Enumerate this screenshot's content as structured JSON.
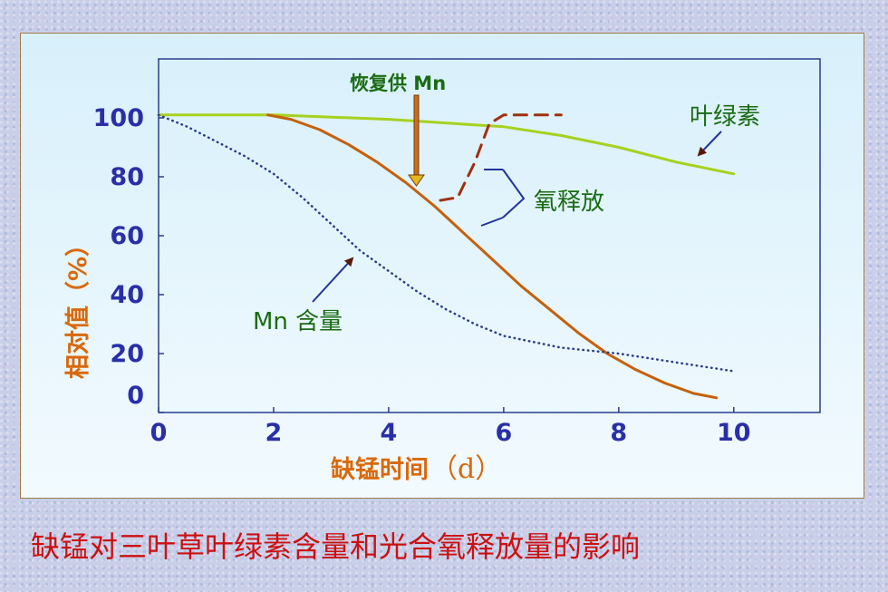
{
  "caption": "缺锰对三叶草叶绿素含量和光合氧释放量的影响",
  "chart_data": {
    "type": "line",
    "xlabel": "缺锰时间",
    "xlabel_unit": "（d）",
    "ylabel": "相对值（%）",
    "xlim": [
      0,
      11.5
    ],
    "ylim": [
      0,
      120
    ],
    "xticks": [
      "0",
      "2",
      "4",
      "6",
      "8",
      "10"
    ],
    "yticks": [
      "0",
      "20",
      "40",
      "60",
      "80",
      "100"
    ],
    "series": [
      {
        "name": "叶绿素",
        "color": "#a6d11e",
        "style": "solid",
        "x": [
          0,
          2,
          4,
          6,
          7,
          8,
          9,
          10
        ],
        "y": [
          101,
          101,
          99.5,
          97,
          94,
          90,
          85,
          81
        ]
      },
      {
        "name": "氧释放",
        "color": "#c5600c",
        "style": "solid",
        "x": [
          1.9,
          2.3,
          2.8,
          3.3,
          3.8,
          4.3,
          4.8,
          5.3,
          5.8,
          6.3,
          6.8,
          7.3,
          7.8,
          8.3,
          8.8,
          9.3,
          9.7
        ],
        "y": [
          101,
          99.5,
          96,
          91,
          85,
          78,
          70,
          61,
          52,
          43,
          35,
          27,
          20,
          14.5,
          10,
          6.5,
          5
        ]
      },
      {
        "name": "氧释放（恢复供Mn）",
        "color": "#a03010",
        "style": "dashed",
        "x": [
          4.9,
          5.2,
          5.5,
          5.75,
          6.0,
          7.0
        ],
        "y": [
          72,
          73,
          85,
          98,
          101,
          101
        ]
      },
      {
        "name": "Mn 含量",
        "color": "#2a3d8c",
        "style": "dotted",
        "x": [
          0,
          0.5,
          1,
          1.5,
          2,
          2.5,
          3,
          3.5,
          4,
          4.5,
          5,
          5.5,
          6,
          7,
          8,
          9,
          10
        ],
        "y": [
          101,
          97,
          92,
          87,
          81,
          73,
          64,
          55,
          48,
          41,
          35,
          30,
          26,
          22,
          20,
          17,
          14
        ]
      }
    ],
    "annotations": {
      "restore_mn": "恢复供 Mn",
      "chlorophyll": "叶绿素",
      "oxygen": "氧释放",
      "mn_content": "Mn 含量"
    }
  }
}
